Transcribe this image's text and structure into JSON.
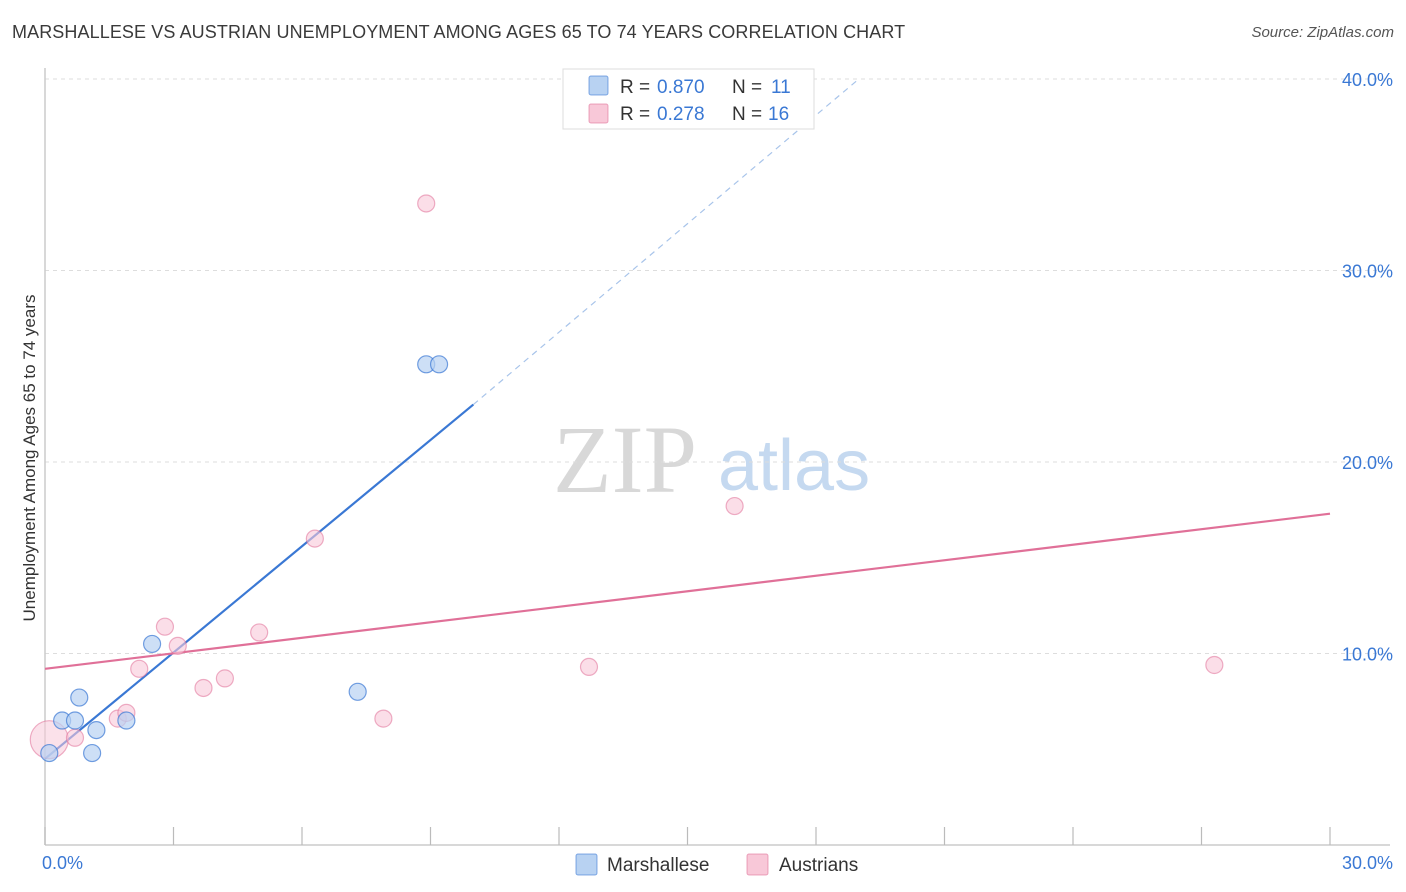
{
  "header": {
    "title": "MARSHALLESE VS AUSTRIAN UNEMPLOYMENT AMONG AGES 65 TO 74 YEARS CORRELATION CHART",
    "source": "Source: ZipAtlas.com"
  },
  "watermark": {
    "zip": "ZIP",
    "atlas": "atlas"
  },
  "colors": {
    "marshallese": "#3a78d4",
    "marshallese_fill": "#b8d2f2",
    "austrians": "#e07098",
    "austrians_fill": "#f8c8d8",
    "grid": "#dddddd",
    "axis_text": "#3a78d4"
  },
  "stats": [
    {
      "key": "marshallese",
      "r_label": "R =",
      "r_value": "0.870",
      "n_label": "N =",
      "n_value": "11"
    },
    {
      "key": "austrians",
      "r_label": "R =",
      "r_value": "0.278",
      "n_label": "N =",
      "n_value": "16"
    }
  ],
  "chart_data": {
    "type": "scatter",
    "title": "MARSHALLESE VS AUSTRIAN UNEMPLOYMENT AMONG AGES 65 TO 74 YEARS CORRELATION CHART",
    "xlabel": "",
    "ylabel": "Unemployment Among Ages 65 to 74 years",
    "xlim": [
      0,
      30
    ],
    "ylim": [
      0,
      40
    ],
    "x_tick_labels": [
      {
        "value": 0,
        "label": "0.0%"
      },
      {
        "value": 30,
        "label": "30.0%"
      }
    ],
    "y_tick_labels": [
      {
        "value": 10,
        "label": "10.0%"
      },
      {
        "value": 20,
        "label": "20.0%"
      },
      {
        "value": 30,
        "label": "30.0%"
      },
      {
        "value": 40,
        "label": "40.0%"
      }
    ],
    "grid": true,
    "legend": "bottom-center",
    "series": [
      {
        "name": "Marshallese",
        "points": [
          {
            "x": 0.1,
            "y": 4.8
          },
          {
            "x": 0.4,
            "y": 6.5
          },
          {
            "x": 0.7,
            "y": 6.5
          },
          {
            "x": 0.8,
            "y": 7.7
          },
          {
            "x": 1.1,
            "y": 4.8
          },
          {
            "x": 1.2,
            "y": 6.0
          },
          {
            "x": 1.9,
            "y": 6.5
          },
          {
            "x": 2.5,
            "y": 10.5
          },
          {
            "x": 7.3,
            "y": 8.0
          },
          {
            "x": 8.9,
            "y": 25.1
          },
          {
            "x": 9.2,
            "y": 25.1
          }
        ],
        "trend": {
          "x0": 0.0,
          "y0": 4.5,
          "x1": 10.0,
          "y1": 23.0,
          "dashed_to_x": 19.0,
          "dashed_to_y": 40.0
        }
      },
      {
        "name": "Austrians",
        "points": [
          {
            "x": 0.1,
            "y": 5.5,
            "large": true
          },
          {
            "x": 0.7,
            "y": 5.6
          },
          {
            "x": 1.7,
            "y": 6.6
          },
          {
            "x": 1.9,
            "y": 6.9
          },
          {
            "x": 2.2,
            "y": 9.2
          },
          {
            "x": 2.8,
            "y": 11.4
          },
          {
            "x": 3.1,
            "y": 10.4
          },
          {
            "x": 3.7,
            "y": 8.2
          },
          {
            "x": 4.2,
            "y": 8.7
          },
          {
            "x": 5.0,
            "y": 11.1
          },
          {
            "x": 6.3,
            "y": 16.0
          },
          {
            "x": 7.9,
            "y": 6.6
          },
          {
            "x": 8.9,
            "y": 33.5
          },
          {
            "x": 12.7,
            "y": 9.3
          },
          {
            "x": 16.1,
            "y": 17.7
          },
          {
            "x": 27.3,
            "y": 9.4
          }
        ],
        "trend": {
          "x0": 0.0,
          "y0": 9.2,
          "x1": 30.0,
          "y1": 17.3
        }
      }
    ]
  },
  "legend": {
    "items": [
      {
        "key": "marshallese",
        "label": "Marshallese"
      },
      {
        "key": "austrians",
        "label": "Austrians"
      }
    ]
  }
}
